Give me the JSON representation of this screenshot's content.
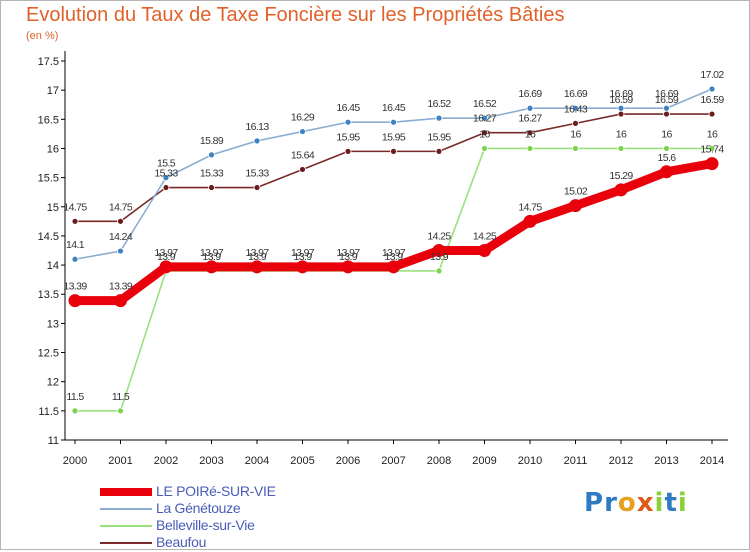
{
  "chart_data": {
    "type": "line",
    "title": "Evolution du Taux de Taxe Foncière sur les Propriétés Bâties",
    "unit_label": "(en %)",
    "xlabel": "",
    "ylabel": "",
    "x": [
      "2000",
      "2001",
      "2002",
      "2003",
      "2004",
      "2005",
      "2006",
      "2007",
      "2008",
      "2009",
      "2010",
      "2011",
      "2012",
      "2013",
      "2014"
    ],
    "ylim": [
      11,
      17.5
    ],
    "yticks": [
      "11",
      "11.5",
      "12",
      "12.5",
      "13",
      "13.5",
      "14",
      "14.5",
      "15",
      "15.5",
      "16",
      "16.5",
      "17",
      "17.5"
    ],
    "grid": false,
    "legend_position": "bottom-left",
    "series": [
      {
        "name": "LE POIRé-SUR-VIE",
        "color": "#e8000b",
        "marker_color": "#e8000b",
        "values": [
          13.39,
          13.39,
          13.97,
          13.97,
          13.97,
          13.97,
          13.97,
          13.97,
          14.25,
          14.25,
          14.75,
          15.02,
          15.29,
          15.6,
          15.74
        ],
        "labels": [
          "13.39",
          "13.39",
          "13.97",
          "13.97",
          "13.97",
          "13.97",
          "13.97",
          "13.97",
          "14.25",
          "14.25",
          "14.75",
          "15.02",
          "15.29",
          "15.6",
          "15.74"
        ]
      },
      {
        "name": "La Génétouze",
        "color": "#8aaed2",
        "marker_color": "#3d82c4",
        "values": [
          14.1,
          14.24,
          15.5,
          15.89,
          16.13,
          16.29,
          16.45,
          16.45,
          16.52,
          16.52,
          16.69,
          16.69,
          16.69,
          16.69,
          17.02
        ],
        "labels": [
          "14.1",
          "14.24",
          "15.5",
          "15.89",
          "16.13",
          "16.29",
          "16.45",
          "16.45",
          "16.52",
          "16.52",
          "16.69",
          "16.69",
          "16.69",
          "16.69",
          "17.02"
        ]
      },
      {
        "name": "Belleville-sur-Vie",
        "color": "#9be07e",
        "marker_color": "#7cd24a",
        "values": [
          11.5,
          11.5,
          13.9,
          13.9,
          13.9,
          13.9,
          13.9,
          13.9,
          13.9,
          16,
          16,
          16,
          16,
          16,
          16
        ],
        "labels": [
          "11.5",
          "11.5",
          "13.9",
          "13.9",
          "13.9",
          "13.9",
          "13.9",
          "13.9",
          "13.9",
          "16",
          "16",
          "16",
          "16",
          "16",
          "16"
        ]
      },
      {
        "name": "Beaufou",
        "color": "#7a2a2a",
        "marker_color": "#6b1c1c",
        "values": [
          14.75,
          14.75,
          15.33,
          15.33,
          15.33,
          15.64,
          15.95,
          15.95,
          15.95,
          16.27,
          16.27,
          16.43,
          16.59,
          16.59,
          16.59
        ],
        "labels": [
          "14.75",
          "14.75",
          "15.33",
          "15.33",
          "15.33",
          "15.64",
          "15.95",
          "15.95",
          "15.95",
          "16.27",
          "16.27",
          "16.43",
          "16.59",
          "16.59",
          "16.59"
        ]
      }
    ]
  },
  "logo": {
    "letters": [
      {
        "char": "P",
        "color": "#2e7bc4"
      },
      {
        "char": "r",
        "color": "#2e7bc4"
      },
      {
        "char": "o",
        "color": "#e8a020"
      },
      {
        "char": "x",
        "color": "#e05a1a"
      },
      {
        "char": "i",
        "color": "#8ccf3a"
      },
      {
        "char": "t",
        "color": "#2e7bc4"
      },
      {
        "char": "i",
        "color": "#8ccf3a"
      }
    ]
  }
}
